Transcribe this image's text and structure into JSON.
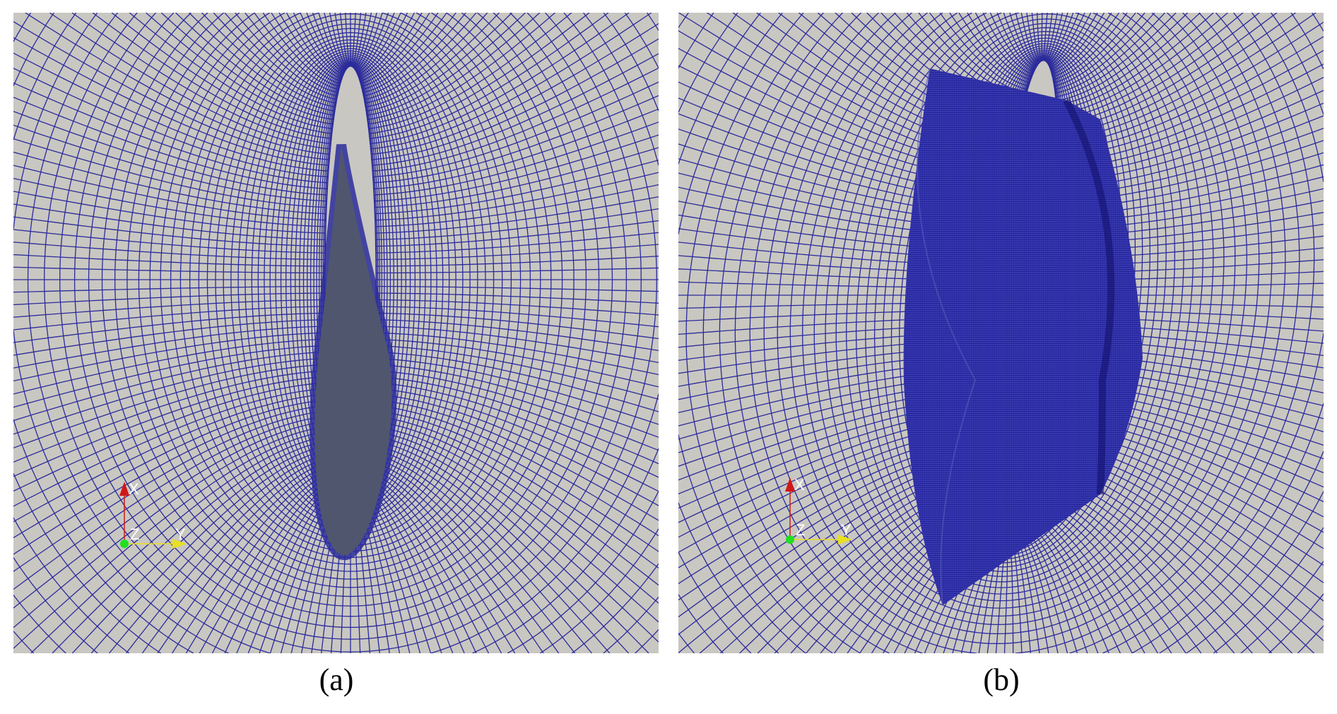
{
  "figure": {
    "panels": [
      {
        "id": "a",
        "caption": "(a)"
      },
      {
        "id": "b",
        "caption": "(b)"
      }
    ],
    "axes_triad": {
      "x_label": "X",
      "y_label": "Y",
      "z_label": "Z"
    },
    "colors": {
      "background": "#c9c7c1",
      "mesh_lines": "#2b2b9c",
      "airfoil_fill": "#4f566e",
      "x_axis": "#d01818",
      "y_axis": "#e8e020",
      "z_axis": "#20e020"
    }
  }
}
